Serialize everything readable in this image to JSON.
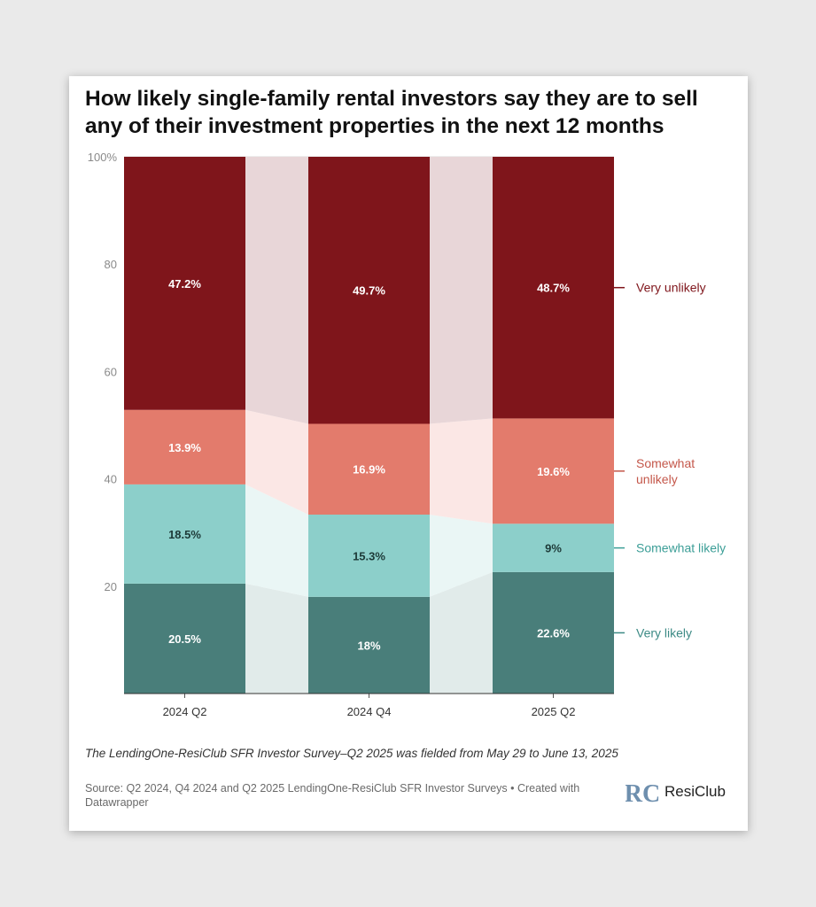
{
  "title": "How likely single-family rental investors say they are to sell any of their investment properties in the next 12 months",
  "notes": "The LendingOne-ResiClub SFR Investor Survey–Q2 2025 was fielded from May 29 to June 13, 2025",
  "source": "Source: Q2 2024, Q4 2024 and Q2 2025 LendingOne-ResiClub SFR Investor Surveys • Created with Datawrapper",
  "logo": {
    "text": "ResiClub",
    "mark": "RC"
  },
  "colors": {
    "very_unlikely": "#7f151b",
    "somewhat_unlikely": "#e37b6c",
    "somewhat_likely": "#8ccfca",
    "very_likely": "#497e7a"
  },
  "chart_data": {
    "type": "bar",
    "stacked": true,
    "categories": [
      "2024 Q2",
      "2024 Q4",
      "2025 Q2"
    ],
    "series": [
      {
        "name": "Very likely",
        "values": [
          20.5,
          18,
          22.6
        ],
        "labels": [
          "20.5%",
          "18%",
          "22.6%"
        ]
      },
      {
        "name": "Somewhat likely",
        "values": [
          18.5,
          15.3,
          9
        ],
        "labels": [
          "18.5%",
          "15.3%",
          "9%"
        ]
      },
      {
        "name": "Somewhat unlikely",
        "values": [
          13.9,
          16.9,
          19.6
        ],
        "labels": [
          "13.9%",
          "16.9%",
          "19.6%"
        ]
      },
      {
        "name": "Very unlikely",
        "values": [
          47.2,
          49.7,
          48.7
        ],
        "labels": [
          "47.2%",
          "49.7%",
          "48.7%"
        ]
      }
    ],
    "legend_labels": [
      [
        "Very unlikely"
      ],
      [
        "Somewhat",
        "unlikely"
      ],
      [
        "Somewhat likely"
      ],
      [
        "Very likely"
      ]
    ],
    "ylim": [
      0,
      100
    ],
    "yticks": [
      20,
      40,
      60,
      80,
      100
    ],
    "ytick_labels": [
      "20",
      "40",
      "60",
      "80",
      "100%"
    ],
    "grid": true,
    "legend": "right"
  }
}
